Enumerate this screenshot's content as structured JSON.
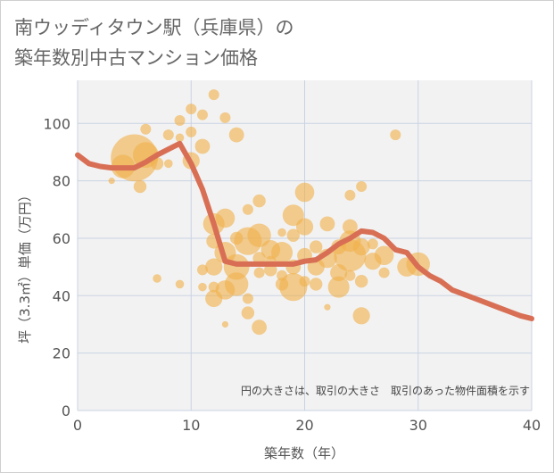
{
  "chart_data": {
    "type": "scatter",
    "title": "南ウッディタウン駅（兵庫県）の\n築年数別中古マンション価格",
    "xlabel": "築年数（年）",
    "ylabel": "坪（3.3㎡）単価（万円）",
    "note": "円の大きさは、取引の大きさ　取引のあった物件面積を示す",
    "xlim": [
      0,
      40
    ],
    "ylim": [
      0,
      115
    ],
    "x_ticks": [
      "0",
      "10",
      "20",
      "30",
      "40"
    ],
    "y_ticks": [
      "0",
      "20",
      "40",
      "60",
      "80",
      "100"
    ],
    "grid": true,
    "colors": {
      "bubble": "#f0b24e",
      "line": "#d86f55",
      "grid": "#c9d3e3",
      "plot_bg": "#f2f2f2"
    },
    "trend_line": {
      "x": [
        0,
        1,
        2,
        3,
        4,
        5,
        6,
        7,
        8,
        9,
        10,
        11,
        12,
        13,
        14,
        15,
        16,
        17,
        18,
        19,
        20,
        21,
        22,
        23,
        24,
        25,
        26,
        27,
        28,
        29,
        30,
        31,
        32,
        33,
        34,
        35,
        36,
        37,
        38,
        39,
        40
      ],
      "y": [
        89,
        86,
        85,
        84.5,
        84.5,
        84.5,
        86.5,
        89,
        91,
        93,
        86,
        77,
        65,
        52,
        51,
        51,
        51,
        51,
        51,
        51,
        52,
        52.5,
        55,
        58,
        60,
        62.5,
        62,
        60,
        56,
        55,
        50,
        47,
        45,
        42,
        40.5,
        39,
        37.5,
        36,
        34.5,
        33,
        32
      ]
    },
    "points": [
      {
        "x": 5,
        "y": 88,
        "s": 2.2
      },
      {
        "x": 4,
        "y": 85,
        "s": 1.1
      },
      {
        "x": 6,
        "y": 89,
        "s": 1.2
      },
      {
        "x": 5.5,
        "y": 78,
        "s": 0.6
      },
      {
        "x": 6,
        "y": 98,
        "s": 0.5
      },
      {
        "x": 3,
        "y": 80,
        "s": 0.3
      },
      {
        "x": 7,
        "y": 86,
        "s": 0.6
      },
      {
        "x": 8,
        "y": 96,
        "s": 0.5
      },
      {
        "x": 9,
        "y": 101,
        "s": 0.5
      },
      {
        "x": 10,
        "y": 105,
        "s": 0.5
      },
      {
        "x": 11,
        "y": 103,
        "s": 0.5
      },
      {
        "x": 12,
        "y": 110,
        "s": 0.5
      },
      {
        "x": 13,
        "y": 102,
        "s": 0.5
      },
      {
        "x": 14,
        "y": 96,
        "s": 0.7
      },
      {
        "x": 10,
        "y": 97,
        "s": 0.5
      },
      {
        "x": 10,
        "y": 87,
        "s": 0.8
      },
      {
        "x": 11,
        "y": 92,
        "s": 0.7
      },
      {
        "x": 9,
        "y": 95,
        "s": 0.4
      },
      {
        "x": 8,
        "y": 86,
        "s": 0.4
      },
      {
        "x": 28,
        "y": 96,
        "s": 0.5
      },
      {
        "x": 12,
        "y": 65,
        "s": 1.0
      },
      {
        "x": 13,
        "y": 67,
        "s": 0.9
      },
      {
        "x": 12,
        "y": 59,
        "s": 0.7
      },
      {
        "x": 11,
        "y": 49,
        "s": 0.5
      },
      {
        "x": 12,
        "y": 50,
        "s": 0.8
      },
      {
        "x": 13,
        "y": 55,
        "s": 1.0
      },
      {
        "x": 14,
        "y": 50,
        "s": 1.2
      },
      {
        "x": 14,
        "y": 44,
        "s": 1.1
      },
      {
        "x": 13,
        "y": 42,
        "s": 0.9
      },
      {
        "x": 12,
        "y": 39,
        "s": 0.8
      },
      {
        "x": 12,
        "y": 43,
        "s": 0.5
      },
      {
        "x": 11,
        "y": 43,
        "s": 0.4
      },
      {
        "x": 9,
        "y": 44,
        "s": 0.4
      },
      {
        "x": 7,
        "y": 46,
        "s": 0.4
      },
      {
        "x": 13,
        "y": 30,
        "s": 0.3
      },
      {
        "x": 15,
        "y": 39,
        "s": 0.5
      },
      {
        "x": 15,
        "y": 34,
        "s": 0.6
      },
      {
        "x": 16,
        "y": 29,
        "s": 0.7
      },
      {
        "x": 15,
        "y": 59,
        "s": 1.3
      },
      {
        "x": 16,
        "y": 61,
        "s": 1.1
      },
      {
        "x": 17,
        "y": 56,
        "s": 0.9
      },
      {
        "x": 15,
        "y": 70,
        "s": 0.5
      },
      {
        "x": 16,
        "y": 73,
        "s": 0.6
      },
      {
        "x": 17,
        "y": 49,
        "s": 0.6
      },
      {
        "x": 16,
        "y": 48,
        "s": 0.5
      },
      {
        "x": 18,
        "y": 55,
        "s": 1.0
      },
      {
        "x": 18,
        "y": 44,
        "s": 0.6
      },
      {
        "x": 19,
        "y": 43,
        "s": 1.3
      },
      {
        "x": 19,
        "y": 50,
        "s": 0.7
      },
      {
        "x": 19,
        "y": 68,
        "s": 1.0
      },
      {
        "x": 20,
        "y": 64,
        "s": 0.8
      },
      {
        "x": 20,
        "y": 76,
        "s": 0.9
      },
      {
        "x": 19,
        "y": 61,
        "s": 0.6
      },
      {
        "x": 18,
        "y": 62,
        "s": 0.4
      },
      {
        "x": 20,
        "y": 54,
        "s": 0.7
      },
      {
        "x": 21,
        "y": 50,
        "s": 0.8
      },
      {
        "x": 21,
        "y": 44,
        "s": 0.6
      },
      {
        "x": 22,
        "y": 65,
        "s": 0.7
      },
      {
        "x": 22,
        "y": 53,
        "s": 0.9
      },
      {
        "x": 22,
        "y": 36,
        "s": 0.3
      },
      {
        "x": 23,
        "y": 43,
        "s": 1.0
      },
      {
        "x": 23,
        "y": 48,
        "s": 0.8
      },
      {
        "x": 24,
        "y": 54,
        "s": 1.5
      },
      {
        "x": 24,
        "y": 59,
        "s": 1.0
      },
      {
        "x": 24,
        "y": 64,
        "s": 0.7
      },
      {
        "x": 24,
        "y": 75,
        "s": 0.5
      },
      {
        "x": 25,
        "y": 78,
        "s": 0.5
      },
      {
        "x": 25,
        "y": 57,
        "s": 0.8
      },
      {
        "x": 25,
        "y": 45,
        "s": 0.6
      },
      {
        "x": 25,
        "y": 33,
        "s": 0.8
      },
      {
        "x": 26,
        "y": 52,
        "s": 0.8
      },
      {
        "x": 27,
        "y": 54,
        "s": 0.9
      },
      {
        "x": 27,
        "y": 48,
        "s": 0.5
      },
      {
        "x": 29,
        "y": 50,
        "s": 0.9
      },
      {
        "x": 30,
        "y": 51,
        "s": 1.1
      },
      {
        "x": 23,
        "y": 57,
        "s": 0.7
      },
      {
        "x": 21,
        "y": 57,
        "s": 0.6
      },
      {
        "x": 17,
        "y": 52,
        "s": 0.5
      },
      {
        "x": 16,
        "y": 53,
        "s": 0.6
      },
      {
        "x": 18,
        "y": 47,
        "s": 0.5
      },
      {
        "x": 20,
        "y": 45,
        "s": 0.5
      },
      {
        "x": 24,
        "y": 47,
        "s": 0.5
      },
      {
        "x": 26,
        "y": 58,
        "s": 0.5
      },
      {
        "x": 14,
        "y": 60,
        "s": 0.6
      }
    ]
  }
}
